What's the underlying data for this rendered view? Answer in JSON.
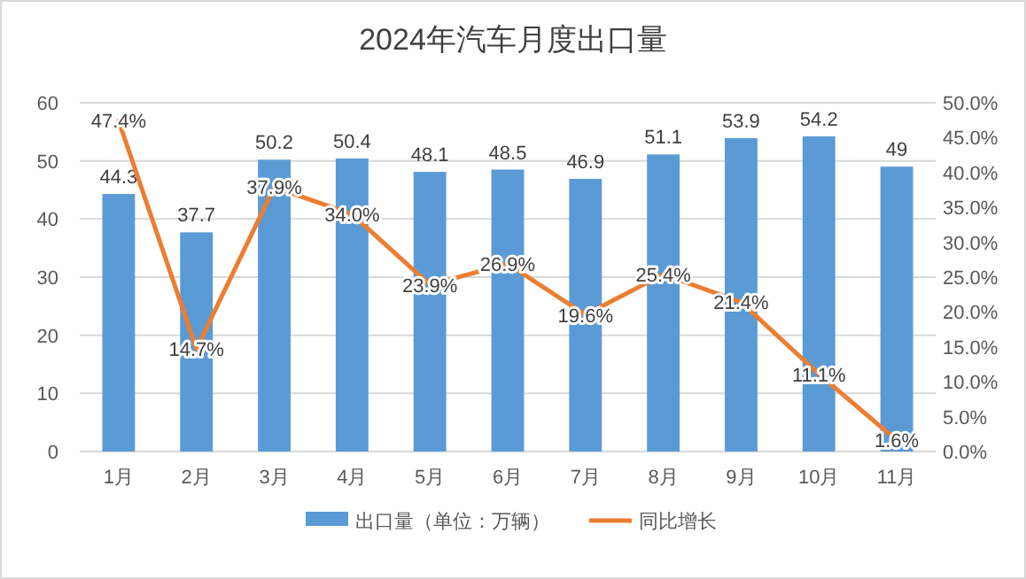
{
  "chart_data": {
    "type": "bar",
    "title": "2024年汽车月度出口量",
    "categories": [
      "1月",
      "2月",
      "3月",
      "4月",
      "5月",
      "6月",
      "7月",
      "8月",
      "9月",
      "10月",
      "11月"
    ],
    "series": [
      {
        "name": "出口量（单位：万辆）",
        "color": "#5b9bd5",
        "values": [
          44.3,
          37.7,
          50.2,
          50.4,
          48.1,
          48.5,
          46.9,
          51.1,
          53.9,
          54.2,
          49
        ],
        "value_labels": [
          "44.3",
          "37.7",
          "50.2",
          "50.4",
          "48.1",
          "48.5",
          "46.9",
          "51.1",
          "53.9",
          "54.2",
          "49"
        ]
      },
      {
        "name": "同比增长",
        "type": "line",
        "axis": "y2",
        "color": "#ed7d31",
        "values": [
          47.4,
          14.7,
          37.9,
          34.0,
          23.9,
          26.9,
          19.6,
          25.4,
          21.4,
          11.1,
          1.6
        ],
        "value_labels": [
          "47.4%",
          "14.7%",
          "37.9%",
          "34.0%",
          "23.9%",
          "26.9%",
          "19.6%",
          "25.4%",
          "21.4%",
          "11.1%",
          "1.6%"
        ]
      }
    ],
    "ylim": [
      0,
      60
    ],
    "yticks": [
      0,
      10,
      20,
      30,
      40,
      50,
      60
    ],
    "y2lim": [
      0,
      50
    ],
    "y2ticks": [
      {
        "value": 0,
        "label": "0.0%"
      },
      {
        "value": 5,
        "label": "5.0%"
      },
      {
        "value": 10,
        "label": "10.0%"
      },
      {
        "value": 15,
        "label": "15.0%"
      },
      {
        "value": 20,
        "label": "20.0%"
      },
      {
        "value": 25,
        "label": "25.0%"
      },
      {
        "value": 30,
        "label": "30.0%"
      },
      {
        "value": 35,
        "label": "35.0%"
      },
      {
        "value": 40,
        "label": "40.0%"
      },
      {
        "value": 45,
        "label": "45.0%"
      },
      {
        "value": 50,
        "label": "50.0%"
      }
    ],
    "grid": "y",
    "legend": "bottom",
    "marker": "none",
    "line_style": "solid"
  }
}
